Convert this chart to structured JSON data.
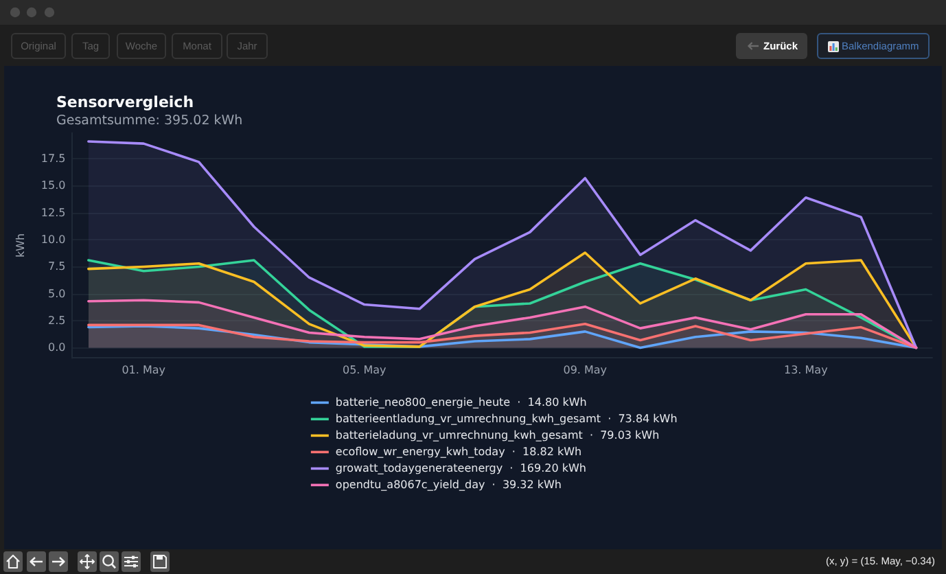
{
  "chart_data": {
    "type": "area",
    "title": "Sensorvergleich",
    "subtitle": "Gesamtsumme: 395.02 kWh",
    "ylabel": "kWh",
    "x": [
      "--04-30",
      "--05-01",
      "--05-02",
      "--05-03",
      "--05-04",
      "--05-05",
      "--05-06",
      "--05-07",
      "--05-08",
      "--05-09",
      "--05-10",
      "--05-11",
      "--05-12",
      "--05-13",
      "--05-14",
      "--05-15"
    ],
    "xlim": [
      "--04-29T17:00",
      "--05-15T07:00"
    ],
    "xticks": [
      {
        "value": "--05-01",
        "label": "01. May"
      },
      {
        "value": "--05-05",
        "label": "05. May"
      },
      {
        "value": "--05-09",
        "label": "09. May"
      },
      {
        "value": "--05-13",
        "label": "13. May"
      }
    ],
    "ylim": [
      -0.95,
      19.9
    ],
    "yticks": [
      {
        "value": 0,
        "label": "0.0"
      },
      2.5,
      {
        "value": 5,
        "label": "5.0"
      },
      7.5,
      {
        "value": 10,
        "label": "10.0"
      },
      12.5,
      {
        "value": 15,
        "label": "15.0"
      },
      17.5
    ],
    "grid": "y",
    "legend": "bottom",
    "marker": "none",
    "line_style": "solid",
    "series": [
      {
        "name": "batterie_neo800_energie_heute  ·  14.80 kWh",
        "color": "#60a5fa",
        "values": [
          1.9,
          2.0,
          1.8,
          1.2,
          0.5,
          0.3,
          0.1,
          0.6,
          0.8,
          1.5,
          0.0,
          1.0,
          1.5,
          1.4,
          0.9,
          0.0
        ]
      },
      {
        "name": "batterieentladung_vr_umrechnung_kwh_gesamt  ·  73.84 kWh",
        "color": "#34d399",
        "values": [
          8.1,
          7.1,
          7.5,
          8.1,
          3.5,
          0.1,
          0.1,
          3.8,
          4.1,
          6.1,
          7.8,
          6.3,
          4.4,
          5.4,
          2.8,
          0.0
        ]
      },
      {
        "name": "batterieladung_vr_umrechnung_kwh_gesamt  ·  79.03 kWh",
        "color": "#fbbf24",
        "values": [
          7.3,
          7.5,
          7.8,
          6.1,
          2.2,
          0.2,
          0.1,
          3.8,
          5.4,
          8.8,
          4.1,
          6.4,
          4.4,
          7.8,
          8.1,
          0.0
        ]
      },
      {
        "name": "ecoflow_wr_energy_kwh_today  ·  18.82 kWh",
        "color": "#f87171",
        "values": [
          2.1,
          2.1,
          2.1,
          1.0,
          0.6,
          0.5,
          0.5,
          1.1,
          1.4,
          2.2,
          0.7,
          2.0,
          0.7,
          1.3,
          1.9,
          0.0
        ]
      },
      {
        "name": "growatt_todaygenerateenergy  ·  169.20 kWh",
        "color": "#a78bfa",
        "values": [
          19.1,
          18.9,
          17.2,
          11.2,
          6.5,
          4.0,
          3.6,
          8.2,
          10.7,
          15.7,
          8.6,
          11.8,
          9.0,
          13.9,
          12.1,
          0.0
        ]
      },
      {
        "name": "opendtu_a8067c_yield_day  ·  39.32 kWh",
        "color": "#f472b6",
        "values": [
          4.3,
          4.4,
          4.2,
          2.8,
          1.4,
          1.0,
          0.8,
          2.0,
          2.8,
          3.8,
          1.8,
          2.8,
          1.7,
          3.1,
          3.1,
          0.0
        ]
      }
    ],
    "annotations": [
      "Original",
      "Tag",
      "Woche",
      "Monat",
      "Jahr",
      "Zurück",
      "Balkendiagramm",
      "(x, y) = (15. May, −0.34)"
    ]
  }
}
